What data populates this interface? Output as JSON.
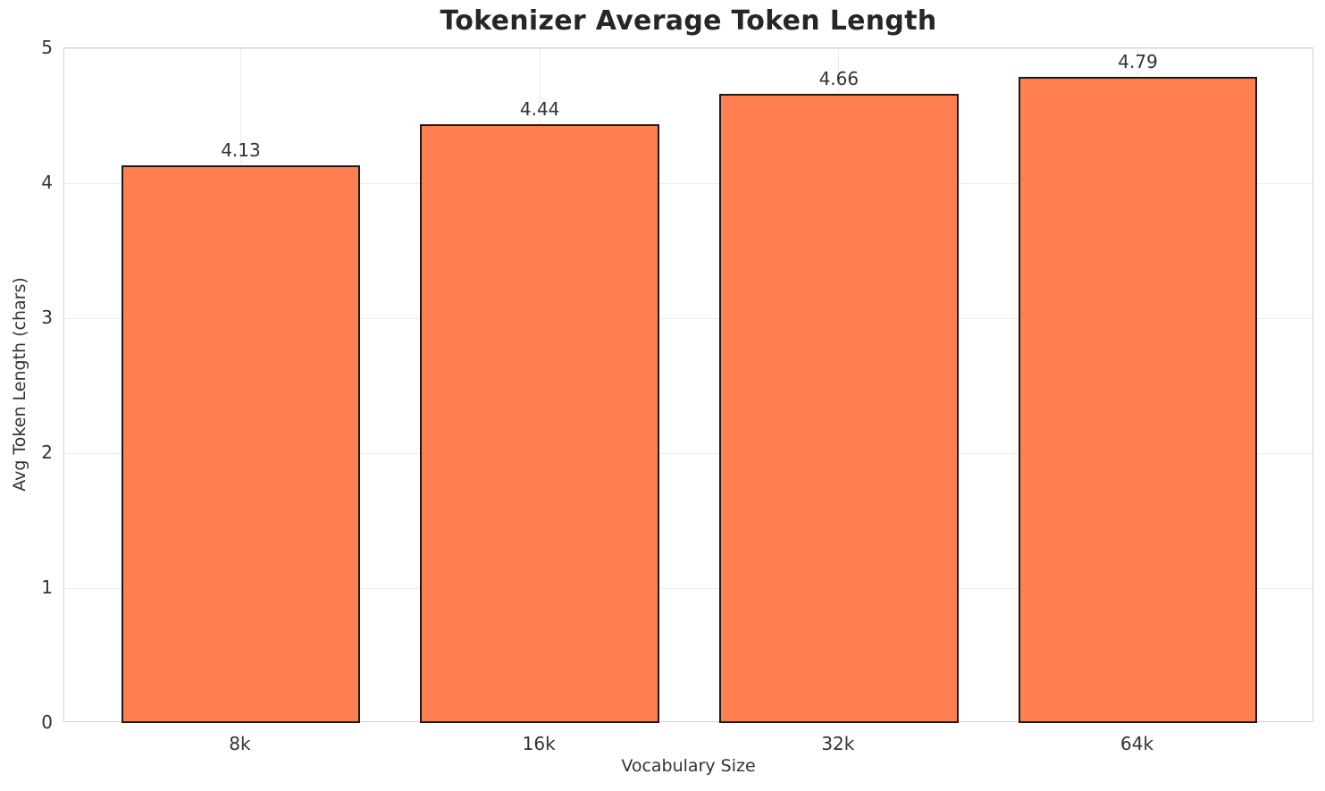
{
  "chart_data": {
    "type": "bar",
    "title": "Tokenizer Average Token Length",
    "xlabel": "Vocabulary Size",
    "ylabel": "Avg Token Length (chars)",
    "categories": [
      "8k",
      "16k",
      "32k",
      "64k"
    ],
    "values": [
      4.13,
      4.44,
      4.66,
      4.79
    ],
    "value_labels": [
      "4.13",
      "4.44",
      "4.66",
      "4.79"
    ],
    "ylim": [
      0,
      5
    ],
    "yticks": [
      0,
      1,
      2,
      3,
      4,
      5
    ],
    "ytick_labels": [
      "0",
      "1",
      "2",
      "3",
      "4",
      "5"
    ],
    "grid": true,
    "legend": "none",
    "bar_color": "#FF7F50",
    "bar_edge_color": "#1a1a1a",
    "grid_color": "#ebebeb",
    "spine_color": "#d4d4d4",
    "background_color": "#ffffff",
    "text_color": "#333333",
    "title_color": "#262626"
  }
}
